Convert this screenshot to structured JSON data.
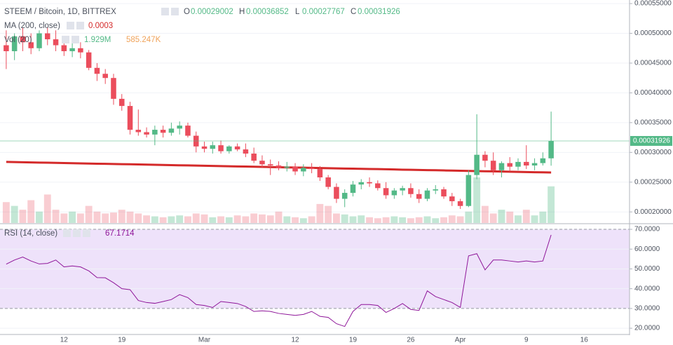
{
  "chart_data": [
    {
      "type": "candlestick",
      "title": "STEEM / Bitcoin, 1D, BITTREX",
      "ohlc_labels": [
        "O",
        "H",
        "L",
        "C"
      ],
      "categories": [
        null,
        null,
        null,
        null,
        null,
        null,
        null,
        "12",
        null,
        null,
        null,
        null,
        null,
        null,
        "19",
        null,
        null,
        null,
        null,
        null,
        null,
        null,
        null,
        null,
        "Mar",
        null,
        null,
        null,
        null,
        null,
        null,
        null,
        null,
        null,
        null,
        "12",
        null,
        null,
        null,
        null,
        null,
        null,
        "19",
        null,
        null,
        null,
        null,
        null,
        null,
        "26",
        null,
        null,
        null,
        null,
        null,
        "Apr",
        null,
        null,
        null,
        null,
        null,
        null,
        null,
        "9",
        null,
        null,
        null,
        null,
        null,
        null,
        "16",
        null,
        null,
        null,
        null,
        null
      ],
      "open": [
        0.00048,
        0.00047,
        0.000495,
        0.000485,
        0.000475,
        0.0005,
        0.00049,
        0.00048,
        0.00047,
        0.000475,
        0.000468,
        0.000442,
        0.000432,
        0.000425,
        0.00039,
        0.000378,
        0.000338,
        0.000334,
        0.00033,
        0.000338,
        0.000333,
        0.00034,
        0.000345,
        0.000328,
        0.00031,
        0.000306,
        0.000312,
        0.000302,
        0.00031,
        0.000305,
        0.000298,
        0.000286,
        0.00028,
        0.000278,
        0.000274,
        0.000276,
        0.000268,
        0.000274,
        0.000272,
        0.000258,
        0.000242,
        0.000222,
        0.000232,
        0.000246,
        0.00025,
        0.000248,
        0.00024,
        0.000228,
        0.000236,
        0.00024,
        0.00023,
        0.000222,
        0.000236,
        0.000238,
        0.000226,
        0.000218,
        0.00021,
        0.000262,
        0.000296,
        0.000286,
        0.00027,
        0.000282,
        0.000276,
        0.000284,
        0.000278,
        0.000282,
        0.00029002,
        null,
        null,
        null,
        null,
        null,
        null,
        null,
        null,
        null
      ],
      "high": [
        0.000505,
        0.0005,
        0.00051,
        0.0005,
        0.000505,
        0.00051,
        0.000505,
        0.000495,
        0.000485,
        0.000485,
        0.000472,
        0.00045,
        0.00044,
        0.000432,
        0.000398,
        0.000385,
        0.000372,
        0.000342,
        0.000345,
        0.000345,
        0.00035,
        0.000352,
        0.00035,
        0.000335,
        0.000318,
        0.000318,
        0.00032,
        0.000312,
        0.000315,
        0.000315,
        0.000308,
        0.000295,
        0.000288,
        0.000285,
        0.000284,
        0.000282,
        0.00028,
        0.000282,
        0.000277,
        0.000262,
        0.000248,
        0.000238,
        0.000252,
        0.000255,
        0.000258,
        0.000253,
        0.00025,
        0.00024,
        0.000244,
        0.000248,
        0.000238,
        0.00024,
        0.000245,
        0.000242,
        0.000232,
        0.000222,
        0.00027,
        0.000364,
        0.000302,
        0.0003,
        0.000285,
        0.000292,
        0.00029,
        0.000312,
        0.00029,
        0.0003,
        0.00036852,
        null,
        null,
        null,
        null,
        null,
        null,
        null,
        null,
        null
      ],
      "low": [
        0.00044,
        0.000455,
        0.00047,
        0.000465,
        0.00047,
        0.00048,
        0.00047,
        0.000462,
        0.00046,
        0.000458,
        0.000438,
        0.00042,
        0.000415,
        0.00038,
        0.00037,
        0.00033,
        0.000328,
        0.000325,
        0.000312,
        0.000325,
        0.000328,
        0.00033,
        0.000325,
        0.0003,
        0.0003,
        0.000298,
        0.000298,
        0.000298,
        0.000302,
        0.000292,
        0.000282,
        0.000275,
        0.000262,
        0.00027,
        0.000268,
        0.000262,
        0.00026,
        0.000265,
        0.000252,
        0.000238,
        0.000215,
        0.000208,
        0.000226,
        0.000238,
        0.000242,
        0.000236,
        0.000222,
        0.000222,
        0.000228,
        0.000224,
        0.000215,
        0.000218,
        0.00023,
        0.000222,
        0.00021,
        0.000205,
        0.000208,
        0.000255,
        0.000275,
        0.000262,
        0.000258,
        0.000268,
        0.00027,
        0.000272,
        0.00027,
        0.000278,
        0.00027767,
        null,
        null,
        null,
        null,
        null,
        null,
        null,
        null,
        null
      ],
      "close": [
        0.00047,
        0.000495,
        0.000485,
        0.000475,
        0.0005,
        0.00049,
        0.00048,
        0.00047,
        0.000475,
        0.000468,
        0.000442,
        0.000432,
        0.000425,
        0.00039,
        0.000378,
        0.000338,
        0.000334,
        0.00033,
        0.000338,
        0.000333,
        0.00034,
        0.000345,
        0.000328,
        0.00031,
        0.000306,
        0.000312,
        0.000302,
        0.00031,
        0.000305,
        0.000298,
        0.000286,
        0.00028,
        0.000278,
        0.000274,
        0.000276,
        0.000268,
        0.000274,
        0.000272,
        0.000258,
        0.000242,
        0.000222,
        0.000232,
        0.000246,
        0.00025,
        0.000248,
        0.00024,
        0.000228,
        0.000236,
        0.00024,
        0.00023,
        0.000222,
        0.000236,
        0.000238,
        0.000226,
        0.000218,
        0.00021,
        0.000262,
        0.000296,
        0.000286,
        0.00027,
        0.000282,
        0.000276,
        0.000284,
        0.000278,
        0.000282,
        0.00029,
        0.00031926,
        null,
        null,
        null,
        null,
        null,
        null,
        null,
        null,
        null
      ],
      "up_color": "#53b987",
      "down_color": "#eb4d5c",
      "ylim": [
        0.0001814,
        0.000556
      ],
      "yticks": [
        {
          "value": 0.0002,
          "label": "0.00020000"
        },
        {
          "value": 0.00025,
          "label": "0.00025000"
        },
        {
          "value": 0.0003,
          "label": "0.00030000"
        },
        {
          "value": 0.00035,
          "label": "0.00035000"
        },
        {
          "value": 0.0004,
          "label": "0.00040000"
        },
        {
          "value": 0.00045,
          "label": "0.00045000"
        },
        {
          "value": 0.0005,
          "label": "0.00050000"
        },
        {
          "value": 0.00055,
          "label": "0.00055000"
        }
      ],
      "grid": true,
      "overlays": [
        {
          "name": "MA (200, close)",
          "value_label": "0.0003",
          "color": "#d42a2a",
          "values": [
            0.000284,
            0.0002837,
            0.0002835,
            0.0002832,
            0.0002829,
            0.0002827,
            0.0002824,
            0.0002821,
            0.0002818,
            0.0002816,
            0.0002813,
            0.000281,
            0.0002808,
            0.0002805,
            0.0002802,
            0.00028,
            0.0002797,
            0.0002794,
            0.0002791,
            0.0002789,
            0.0002786,
            0.0002783,
            0.0002781,
            0.0002778,
            0.0002775,
            0.0002773,
            0.000277,
            0.0002767,
            0.0002764,
            0.0002762,
            0.0002759,
            0.0002756,
            0.0002754,
            0.0002751,
            0.0002748,
            0.0002746,
            0.0002743,
            0.000274,
            0.0002737,
            0.0002735,
            0.0002732,
            0.0002729,
            0.0002727,
            0.0002724,
            0.0002721,
            0.0002719,
            0.0002716,
            0.0002713,
            0.000271,
            0.0002708,
            0.0002705,
            0.0002702,
            0.00027,
            0.0002697,
            0.0002694,
            0.0002692,
            0.0002689,
            0.0002686,
            0.0002683,
            0.0002681,
            0.0002678,
            0.0002675,
            0.0002673,
            0.000267,
            0.0002667,
            0.0002665,
            0.0002662,
            null,
            null,
            null,
            null,
            null,
            null,
            null,
            null,
            null
          ]
        }
      ],
      "volume": {
        "name": "Vol (20)",
        "value_label": "1.929M",
        "ma_label": "585.247K",
        "ma_color": "#f0a35a",
        "values": [
          1100000,
          900000,
          700000,
          1200000,
          600000,
          1500000,
          700000,
          500000,
          600000,
          500000,
          900000,
          600000,
          500000,
          550000,
          700000,
          600000,
          500000,
          400000,
          350000,
          300000,
          350000,
          400000,
          350000,
          500000,
          450000,
          300000,
          350000,
          300000,
          400000,
          350000,
          500000,
          450000,
          400000,
          600000,
          350000,
          300000,
          250000,
          350000,
          1000000,
          900000,
          500000,
          450000,
          350000,
          400000,
          300000,
          250000,
          300000,
          350000,
          300000,
          250000,
          300000,
          350000,
          250000,
          300000,
          400000,
          350000,
          600000,
          2400000,
          900000,
          500000,
          700000,
          600000,
          400000,
          700000,
          400000,
          600000,
          1929000,
          null,
          null,
          null,
          null,
          null,
          null,
          null,
          null,
          null
        ]
      }
    },
    {
      "type": "line",
      "title": "RSI (14, close)",
      "color": "#8e1599",
      "values": [
        52.4,
        54.5,
        56,
        54,
        52.5,
        52.8,
        54.5,
        51,
        51.5,
        51,
        49,
        45.6,
        45.5,
        43,
        40,
        39.5,
        34,
        33,
        32.6,
        33.5,
        34.5,
        37,
        35.5,
        32,
        31.5,
        30.5,
        33.5,
        33,
        32.5,
        31,
        28.5,
        28.8,
        28.5,
        27.5,
        27,
        26.5,
        27,
        28.5,
        26,
        25.5,
        22.3,
        20.9,
        28.5,
        32,
        32,
        31.5,
        28,
        30,
        32.5,
        29.5,
        29,
        38.9,
        36,
        34.5,
        33,
        30.5,
        56.6,
        57.7,
        49.5,
        54.5,
        54.5,
        54,
        53.5,
        54,
        53.5,
        54,
        67.1714,
        null,
        null,
        null,
        null,
        null,
        null,
        null,
        null,
        null
      ],
      "ylim": [
        17.2,
        72.5
      ],
      "yticks": [
        {
          "value": 20,
          "label": "20.0000"
        },
        {
          "value": 30,
          "label": "30.0000"
        },
        {
          "value": 40,
          "label": "40.0000"
        },
        {
          "value": 50,
          "label": "50.0000"
        },
        {
          "value": 60,
          "label": "60.0000"
        },
        {
          "value": 70,
          "label": "70.0000"
        }
      ],
      "band": [
        30,
        70
      ],
      "band_color": "#eee2fa"
    }
  ]
}
